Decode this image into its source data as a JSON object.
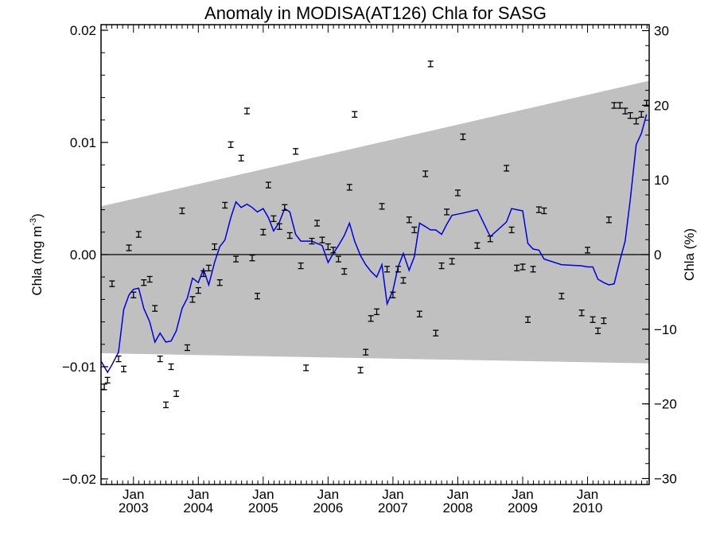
{
  "chart_data": {
    "type": "line",
    "title": "Anomaly in MODISA(AT126) Chla for SASG",
    "ylabel_left": "Chla (mg m",
    "ylabel_left_sup": "-3",
    "ylabel_left_tail": ")",
    "ylabel_right": "Chla (%)",
    "xlim": [
      2002.5,
      2010.95
    ],
    "ylim": [
      -0.0205,
      0.0205
    ],
    "ylim_right": [
      -30.8,
      30.8
    ],
    "yticks_left": [
      {
        "v": 0.02,
        "label": "0.02"
      },
      {
        "v": 0.01,
        "label": "0.01"
      },
      {
        "v": 0.0,
        "label": "0.00"
      },
      {
        "v": -0.01,
        "label": "−0.01"
      },
      {
        "v": -0.02,
        "label": "−0.02"
      }
    ],
    "yticks_right": [
      {
        "v": 30,
        "label": "30"
      },
      {
        "v": 20,
        "label": "20"
      },
      {
        "v": 10,
        "label": "10"
      },
      {
        "v": 0,
        "label": "0"
      },
      {
        "v": -10,
        "label": "−10"
      },
      {
        "v": -20,
        "label": "−20"
      },
      {
        "v": -30,
        "label": "−30"
      }
    ],
    "xticks": [
      {
        "x": 2003.0,
        "month": "Jan",
        "year": "2003"
      },
      {
        "x": 2004.0,
        "month": "Jan",
        "year": "2004"
      },
      {
        "x": 2005.0,
        "month": "Jan",
        "year": "2005"
      },
      {
        "x": 2006.0,
        "month": "Jan",
        "year": "2006"
      },
      {
        "x": 2007.0,
        "month": "Jan",
        "year": "2007"
      },
      {
        "x": 2008.0,
        "month": "Jan",
        "year": "2008"
      },
      {
        "x": 2009.0,
        "month": "Jan",
        "year": "2009"
      },
      {
        "x": 2010.0,
        "month": "Jan",
        "year": "2010"
      }
    ],
    "confidence_band": {
      "x": [
        2002.5,
        2010.95
      ],
      "upper": [
        0.0043,
        0.0155
      ],
      "lower": [
        -0.0088,
        -0.0097
      ],
      "color": "#c0c0c0"
    },
    "zero_line": 0,
    "series": [
      {
        "kind": "line",
        "color": "#0000dd",
        "x": [
          2002.5,
          2002.6,
          2002.67,
          2002.77,
          2002.85,
          2002.93,
          2003.0,
          2003.08,
          2003.16,
          2003.25,
          2003.33,
          2003.41,
          2003.5,
          2003.58,
          2003.66,
          2003.75,
          2003.83,
          2003.91,
          2004.0,
          2004.08,
          2004.16,
          2004.25,
          2004.33,
          2004.41,
          2004.5,
          2004.58,
          2004.66,
          2004.75,
          2004.83,
          2004.91,
          2005.0,
          2005.08,
          2005.16,
          2005.25,
          2005.33,
          2005.41,
          2005.5,
          2005.58,
          2005.66,
          2005.75,
          2005.83,
          2005.91,
          2006.0,
          2006.08,
          2006.16,
          2006.25,
          2006.33,
          2006.41,
          2006.5,
          2006.58,
          2006.66,
          2006.75,
          2006.83,
          2006.91,
          2007.0,
          2007.08,
          2007.16,
          2007.25,
          2007.33,
          2007.41,
          2007.5,
          2007.58,
          2007.66,
          2007.75,
          2007.83,
          2007.91,
          2008.0,
          2008.08,
          2008.3,
          2008.5,
          2008.75,
          2008.83,
          2008.91,
          2009.0,
          2009.08,
          2009.16,
          2009.25,
          2009.33,
          2009.6,
          2009.91,
          2010.0,
          2010.08,
          2010.16,
          2010.25,
          2010.33,
          2010.41,
          2010.5,
          2010.58,
          2010.66,
          2010.75,
          2010.83,
          2010.91
        ],
        "y": [
          -0.0095,
          -0.0105,
          -0.0098,
          -0.0087,
          -0.0049,
          -0.0036,
          -0.0031,
          -0.003,
          -0.0048,
          -0.006,
          -0.0078,
          -0.007,
          -0.0078,
          -0.0077,
          -0.0068,
          -0.0048,
          -0.0039,
          -0.0021,
          -0.0025,
          -0.0013,
          -0.0027,
          -0.0007,
          0.0007,
          0.0013,
          0.0033,
          0.0047,
          0.0042,
          0.0045,
          0.0042,
          0.0038,
          0.0041,
          0.0033,
          0.0021,
          0.0029,
          0.0041,
          0.0038,
          0.0018,
          0.0012,
          0.0012,
          0.0012,
          0.001,
          0.0008,
          -0.0007,
          0.0001,
          0.0008,
          0.0017,
          0.0028,
          0.0012,
          -0.0001,
          -0.0009,
          -0.0015,
          -0.002,
          -0.0009,
          -0.0044,
          -0.0032,
          -0.0011,
          0.0001,
          -0.0014,
          -0.0002,
          0.0028,
          0.0025,
          0.0022,
          0.0022,
          0.0018,
          0.0027,
          0.0035,
          0.0036,
          0.0037,
          0.004,
          0.0016,
          0.0029,
          0.0041,
          0.004,
          0.0039,
          0.001,
          0.0005,
          0.0004,
          -0.0004,
          -0.0009,
          -0.001,
          -0.0011,
          -0.0011,
          -0.0022,
          -0.0025,
          -0.0027,
          -0.0026,
          -0.0005,
          0.0012,
          0.005,
          0.0098,
          0.0108,
          0.0125
        ]
      },
      {
        "kind": "errorbar",
        "color": "#000000",
        "x": [
          2002.55,
          2002.6,
          2002.67,
          2002.77,
          2002.85,
          2002.93,
          2003.0,
          2003.08,
          2003.16,
          2003.25,
          2003.33,
          2003.41,
          2003.5,
          2003.58,
          2003.66,
          2003.75,
          2003.83,
          2003.91,
          2004.0,
          2004.08,
          2004.16,
          2004.25,
          2004.33,
          2004.41,
          2004.5,
          2004.58,
          2004.66,
          2004.75,
          2004.83,
          2004.91,
          2005.0,
          2005.08,
          2005.16,
          2005.25,
          2005.33,
          2005.41,
          2005.5,
          2005.58,
          2005.66,
          2005.75,
          2005.83,
          2005.91,
          2006.0,
          2006.08,
          2006.16,
          2006.25,
          2006.33,
          2006.41,
          2006.5,
          2006.58,
          2006.66,
          2006.75,
          2006.83,
          2006.91,
          2007.0,
          2007.08,
          2007.16,
          2007.25,
          2007.33,
          2007.41,
          2007.5,
          2007.58,
          2007.66,
          2007.75,
          2007.83,
          2007.91,
          2008.0,
          2008.08,
          2008.3,
          2008.5,
          2008.75,
          2008.83,
          2008.91,
          2009.0,
          2009.08,
          2009.16,
          2009.25,
          2009.33,
          2009.6,
          2009.91,
          2010.0,
          2010.08,
          2010.16,
          2010.25,
          2010.33,
          2010.41,
          2010.5,
          2010.58,
          2010.66,
          2010.75,
          2010.83,
          2010.91
        ],
        "y": [
          -0.0118,
          -0.0112,
          -0.0026,
          -0.0093,
          -0.0102,
          0.0006,
          -0.0036,
          0.0018,
          -0.0025,
          -0.0022,
          -0.0048,
          -0.0093,
          -0.0134,
          -0.01,
          -0.0124,
          0.0039,
          -0.0083,
          -0.004,
          -0.0032,
          -0.0017,
          -0.0012,
          0.0007,
          -0.0025,
          0.0044,
          0.0098,
          -0.0004,
          0.0086,
          0.0128,
          -0.0003,
          -0.0037,
          0.002,
          0.0062,
          0.0032,
          0.0025,
          0.0042,
          0.0017,
          0.0092,
          -0.001,
          -0.0101,
          0.0012,
          0.0028,
          0.0013,
          0.0007,
          0.0004,
          -0.0004,
          -0.0015,
          0.006,
          0.0125,
          -0.0103,
          -0.0087,
          -0.0057,
          -0.0051,
          0.0043,
          -0.0013,
          -0.0036,
          -0.0013,
          -0.0023,
          0.0031,
          0.0022,
          -0.0053,
          0.0072,
          0.017,
          -0.007,
          -0.001,
          0.0038,
          -0.0006,
          0.0055,
          0.0105,
          0.0008,
          0.0014,
          0.0077,
          0.0022,
          -0.0012,
          -0.0011,
          -0.0058,
          -0.0013,
          0.004,
          0.0039,
          -0.0037,
          -0.0052,
          0.0004,
          -0.0058,
          -0.0068,
          -0.0059,
          0.0031,
          0.0133,
          0.0133,
          0.0128,
          0.0124,
          0.0119,
          0.0125,
          0.0135
        ],
        "err": 0.00025
      }
    ]
  }
}
